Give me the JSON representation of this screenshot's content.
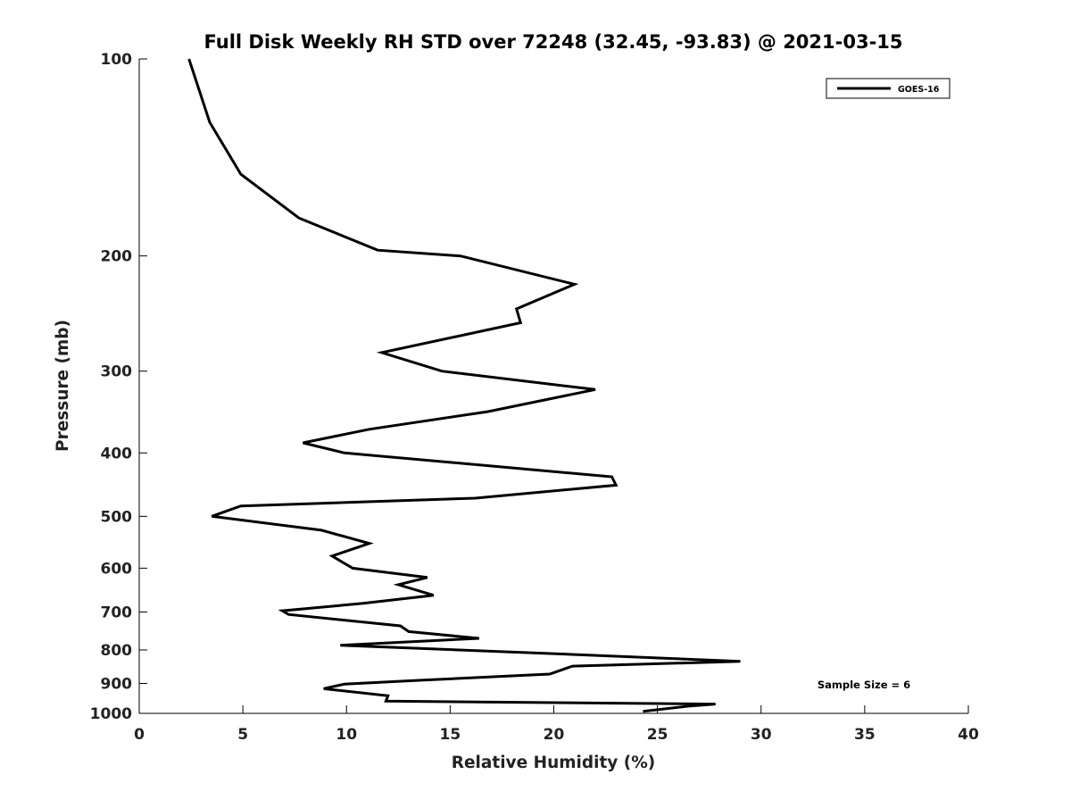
{
  "chart_data": {
    "type": "line",
    "title": "Full Disk Weekly RH STD over 72248 (32.45, -93.83) @ 2021-03-15",
    "xlabel": "Relative Humidity (%)",
    "ylabel": "Pressure (mb)",
    "xlim": [
      0,
      40
    ],
    "ylim": [
      1000,
      100
    ],
    "y_scale": "log",
    "y_reversed": true,
    "grid": false,
    "legend_position": "top-right",
    "x_ticks": [
      0,
      5,
      10,
      15,
      20,
      25,
      30,
      35,
      40
    ],
    "y_ticks": [
      100,
      200,
      300,
      400,
      500,
      600,
      700,
      800,
      900,
      1000
    ],
    "annotation": "Sample Size = 6",
    "series": [
      {
        "name": "GOES-16",
        "color": "#000000",
        "points": [
          [
            2.4,
            100
          ],
          [
            3.4,
            125
          ],
          [
            4.9,
            150
          ],
          [
            7.7,
            175
          ],
          [
            11.5,
            196
          ],
          [
            15.5,
            200
          ],
          [
            21.0,
            221
          ],
          [
            18.2,
            241
          ],
          [
            18.4,
            253
          ],
          [
            11.7,
            281
          ],
          [
            14.6,
            300
          ],
          [
            22.0,
            320
          ],
          [
            16.8,
            346
          ],
          [
            11.1,
            368
          ],
          [
            7.9,
            386
          ],
          [
            9.9,
            400
          ],
          [
            22.8,
            435
          ],
          [
            23.0,
            448
          ],
          [
            16.2,
            469
          ],
          [
            4.9,
            482
          ],
          [
            3.5,
            500
          ],
          [
            8.8,
            525
          ],
          [
            11.1,
            550
          ],
          [
            9.3,
            575
          ],
          [
            10.3,
            600
          ],
          [
            13.9,
            620
          ],
          [
            12.5,
            636
          ],
          [
            14.2,
            660
          ],
          [
            10.8,
            679
          ],
          [
            6.9,
            697
          ],
          [
            7.2,
            706
          ],
          [
            12.6,
            735
          ],
          [
            13.0,
            750
          ],
          [
            16.4,
            768
          ],
          [
            9.7,
            787
          ],
          [
            21.0,
            813
          ],
          [
            29.0,
            833
          ],
          [
            20.9,
            847
          ],
          [
            19.8,
            871
          ],
          [
            13.6,
            890
          ],
          [
            9.9,
            902
          ],
          [
            8.9,
            917
          ],
          [
            12.0,
            940
          ],
          [
            11.9,
            958
          ],
          [
            27.8,
            968
          ],
          [
            26.5,
            975
          ],
          [
            24.3,
            993
          ]
        ]
      }
    ]
  }
}
